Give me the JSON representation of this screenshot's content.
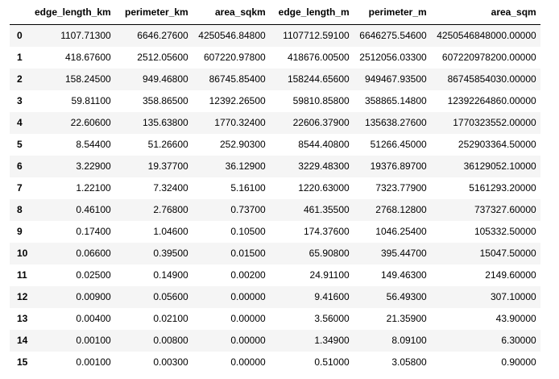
{
  "table": {
    "columns": [
      "edge_length_km",
      "perimeter_km",
      "area_sqkm",
      "edge_length_m",
      "perimeter_m",
      "area_sqm"
    ],
    "rows": [
      {
        "index": "0",
        "cells": [
          "1107.71300",
          "6646.27600",
          "4250546.84800",
          "1107712.59100",
          "6646275.54600",
          "4250546848000.00000"
        ]
      },
      {
        "index": "1",
        "cells": [
          "418.67600",
          "2512.05600",
          "607220.97800",
          "418676.00500",
          "2512056.03300",
          "607220978200.00000"
        ]
      },
      {
        "index": "2",
        "cells": [
          "158.24500",
          "949.46800",
          "86745.85400",
          "158244.65600",
          "949467.93500",
          "86745854030.00000"
        ]
      },
      {
        "index": "3",
        "cells": [
          "59.81100",
          "358.86500",
          "12392.26500",
          "59810.85800",
          "358865.14800",
          "12392264860.00000"
        ]
      },
      {
        "index": "4",
        "cells": [
          "22.60600",
          "135.63800",
          "1770.32400",
          "22606.37900",
          "135638.27600",
          "1770323552.00000"
        ]
      },
      {
        "index": "5",
        "cells": [
          "8.54400",
          "51.26600",
          "252.90300",
          "8544.40800",
          "51266.45000",
          "252903364.50000"
        ]
      },
      {
        "index": "6",
        "cells": [
          "3.22900",
          "19.37700",
          "36.12900",
          "3229.48300",
          "19376.89700",
          "36129052.10000"
        ]
      },
      {
        "index": "7",
        "cells": [
          "1.22100",
          "7.32400",
          "5.16100",
          "1220.63000",
          "7323.77900",
          "5161293.20000"
        ]
      },
      {
        "index": "8",
        "cells": [
          "0.46100",
          "2.76800",
          "0.73700",
          "461.35500",
          "2768.12800",
          "737327.60000"
        ]
      },
      {
        "index": "9",
        "cells": [
          "0.17400",
          "1.04600",
          "0.10500",
          "174.37600",
          "1046.25400",
          "105332.50000"
        ]
      },
      {
        "index": "10",
        "cells": [
          "0.06600",
          "0.39500",
          "0.01500",
          "65.90800",
          "395.44700",
          "15047.50000"
        ]
      },
      {
        "index": "11",
        "cells": [
          "0.02500",
          "0.14900",
          "0.00200",
          "24.91100",
          "149.46300",
          "2149.60000"
        ]
      },
      {
        "index": "12",
        "cells": [
          "0.00900",
          "0.05600",
          "0.00000",
          "9.41600",
          "56.49300",
          "307.10000"
        ]
      },
      {
        "index": "13",
        "cells": [
          "0.00400",
          "0.02100",
          "0.00000",
          "3.56000",
          "21.35900",
          "43.90000"
        ]
      },
      {
        "index": "14",
        "cells": [
          "0.00100",
          "0.00800",
          "0.00000",
          "1.34900",
          "8.09100",
          "6.30000"
        ]
      },
      {
        "index": "15",
        "cells": [
          "0.00100",
          "0.00300",
          "0.00000",
          "0.51000",
          "3.05800",
          "0.90000"
        ]
      }
    ]
  },
  "colors": {
    "stripe": "#f5f5f5",
    "background": "#ffffff",
    "header_rule": "#000000"
  }
}
